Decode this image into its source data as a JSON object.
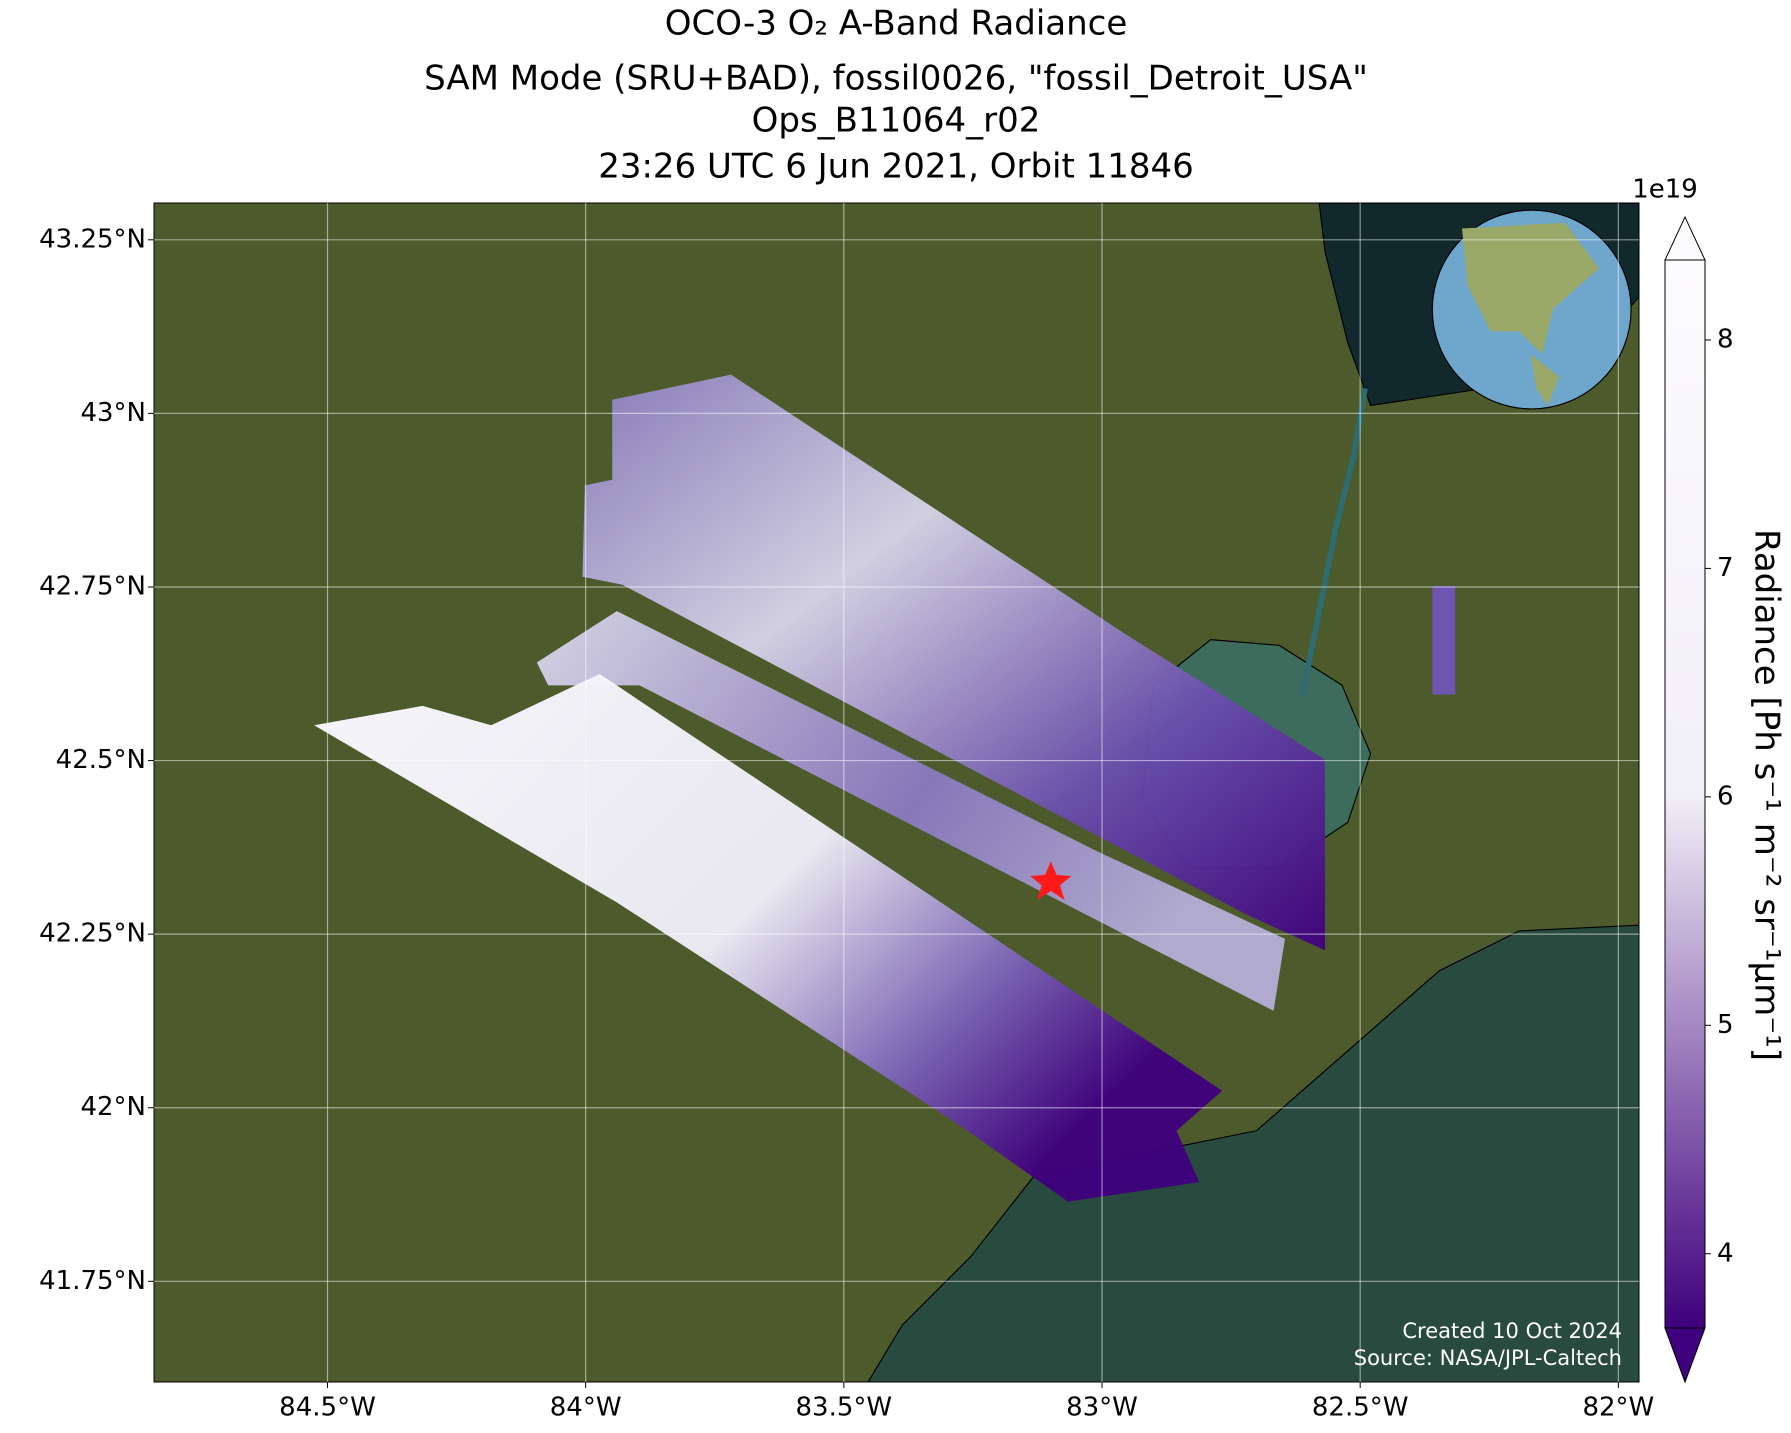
{
  "map": {
    "title": [
      "OCO-3 O₂ A-Band Radiance",
      "SAM Mode (SRU+BAD), fossil0026, \"fossil_Detroit_USA\"",
      "Ops_B11064_r02",
      "23:26 UTC 6 Jun 2021, Orbit 11846"
    ],
    "xlim": [
      -84.836,
      -81.96
    ],
    "ylim": [
      41.605,
      43.303
    ],
    "xticks": [
      {
        "value": -84.5,
        "label": "84.5°W"
      },
      {
        "value": -84,
        "label": "84°W"
      },
      {
        "value": -83.5,
        "label": "83.5°W"
      },
      {
        "value": -83,
        "label": "83°W"
      },
      {
        "value": -82.5,
        "label": "82.5°W"
      },
      {
        "value": -82,
        "label": "82°W"
      }
    ],
    "yticks": [
      {
        "value": 41.75,
        "label": "41.75°N"
      },
      {
        "value": 42,
        "label": "42°N"
      },
      {
        "value": 42.25,
        "label": "42.25°N"
      },
      {
        "value": 42.5,
        "label": "42.5°N"
      },
      {
        "value": 42.75,
        "label": "42.75°N"
      },
      {
        "value": 43,
        "label": "43°N"
      },
      {
        "value": 43.25,
        "label": "43.25°N"
      }
    ],
    "grid": true,
    "colorbar": {
      "label": "Radiance [Ph s⁻¹ m⁻² sr⁻¹μm⁻¹]",
      "offset_label": "1e19",
      "clim": [
        3.675,
        8.35
      ],
      "ticks": [
        4,
        5,
        6,
        7,
        8
      ],
      "colors": [
        "#3f007d",
        "#f2f0f7",
        "#fcfbfd"
      ]
    },
    "credits": [
      "Created 10 Oct 2024",
      "Source: NASA/JPL-Caltech"
    ]
  }
}
